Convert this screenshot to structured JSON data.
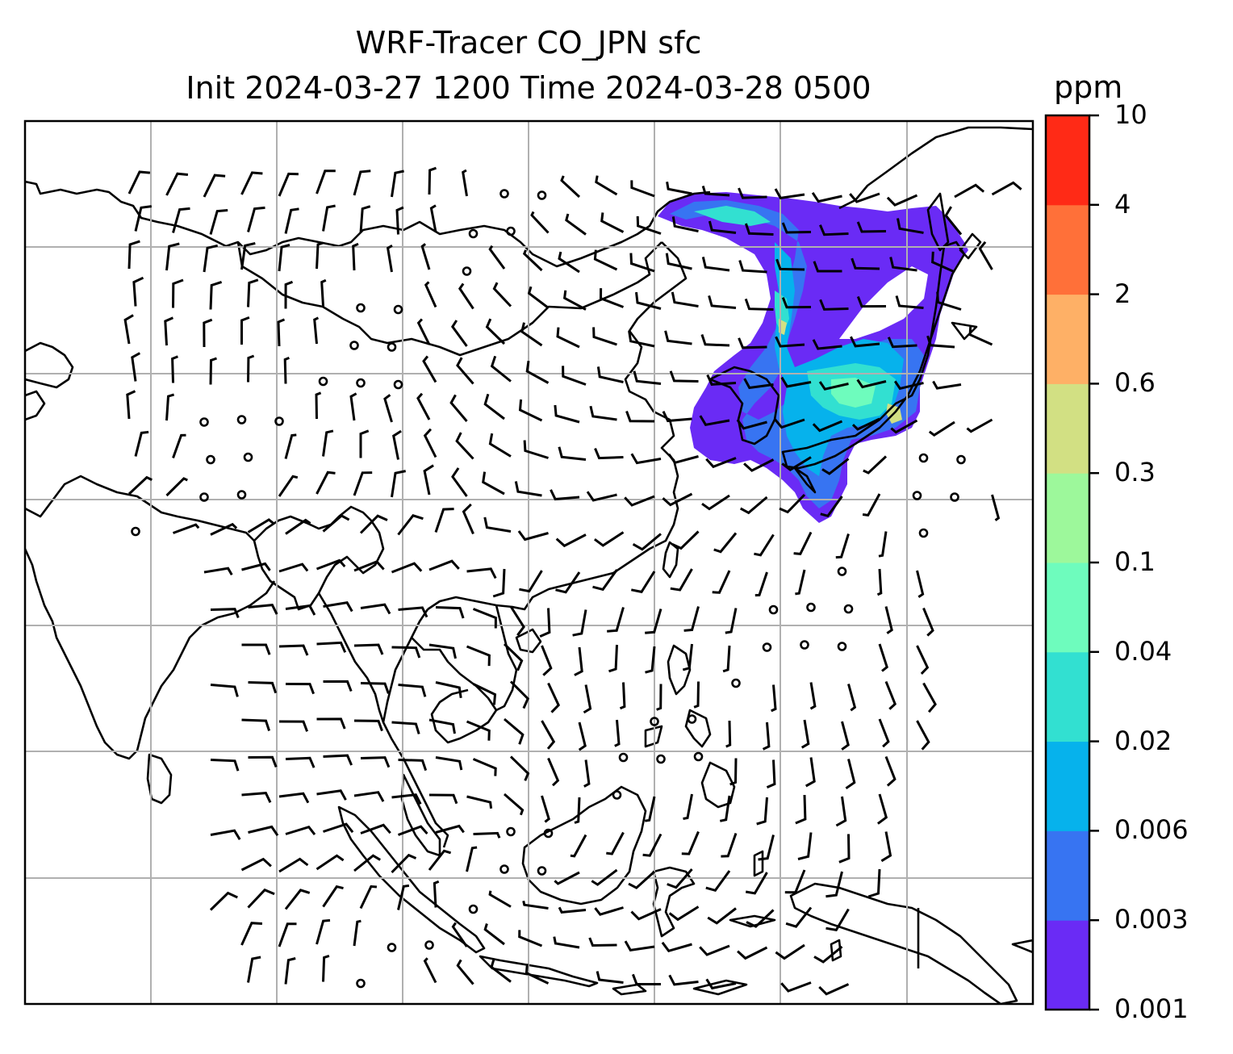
{
  "title": {
    "line1": "WRF-Tracer CO_JPN sfc",
    "line2": "Init 2024-03-27 1200 Time 2024-03-28 0500"
  },
  "colorbar": {
    "unit": "ppm",
    "levels": [
      "0.001",
      "0.003",
      "0.006",
      "0.02",
      "0.04",
      "0.1",
      "0.3",
      "0.6",
      "2",
      "4",
      "10"
    ],
    "colors": [
      "#6a2bf5",
      "#3774f2",
      "#06b2ec",
      "#32e0d1",
      "#6efcbd",
      "#9df89b",
      "#d2e083",
      "#feb066",
      "#ff7039",
      "#ff2a16"
    ]
  },
  "map": {
    "wind_barbs_shown": true,
    "grid": true,
    "tracer_plume_colors": [
      "#6a2bf5",
      "#3774f2",
      "#06b2ec",
      "#32e0d1",
      "#6efcbd",
      "#d2e083"
    ]
  }
}
